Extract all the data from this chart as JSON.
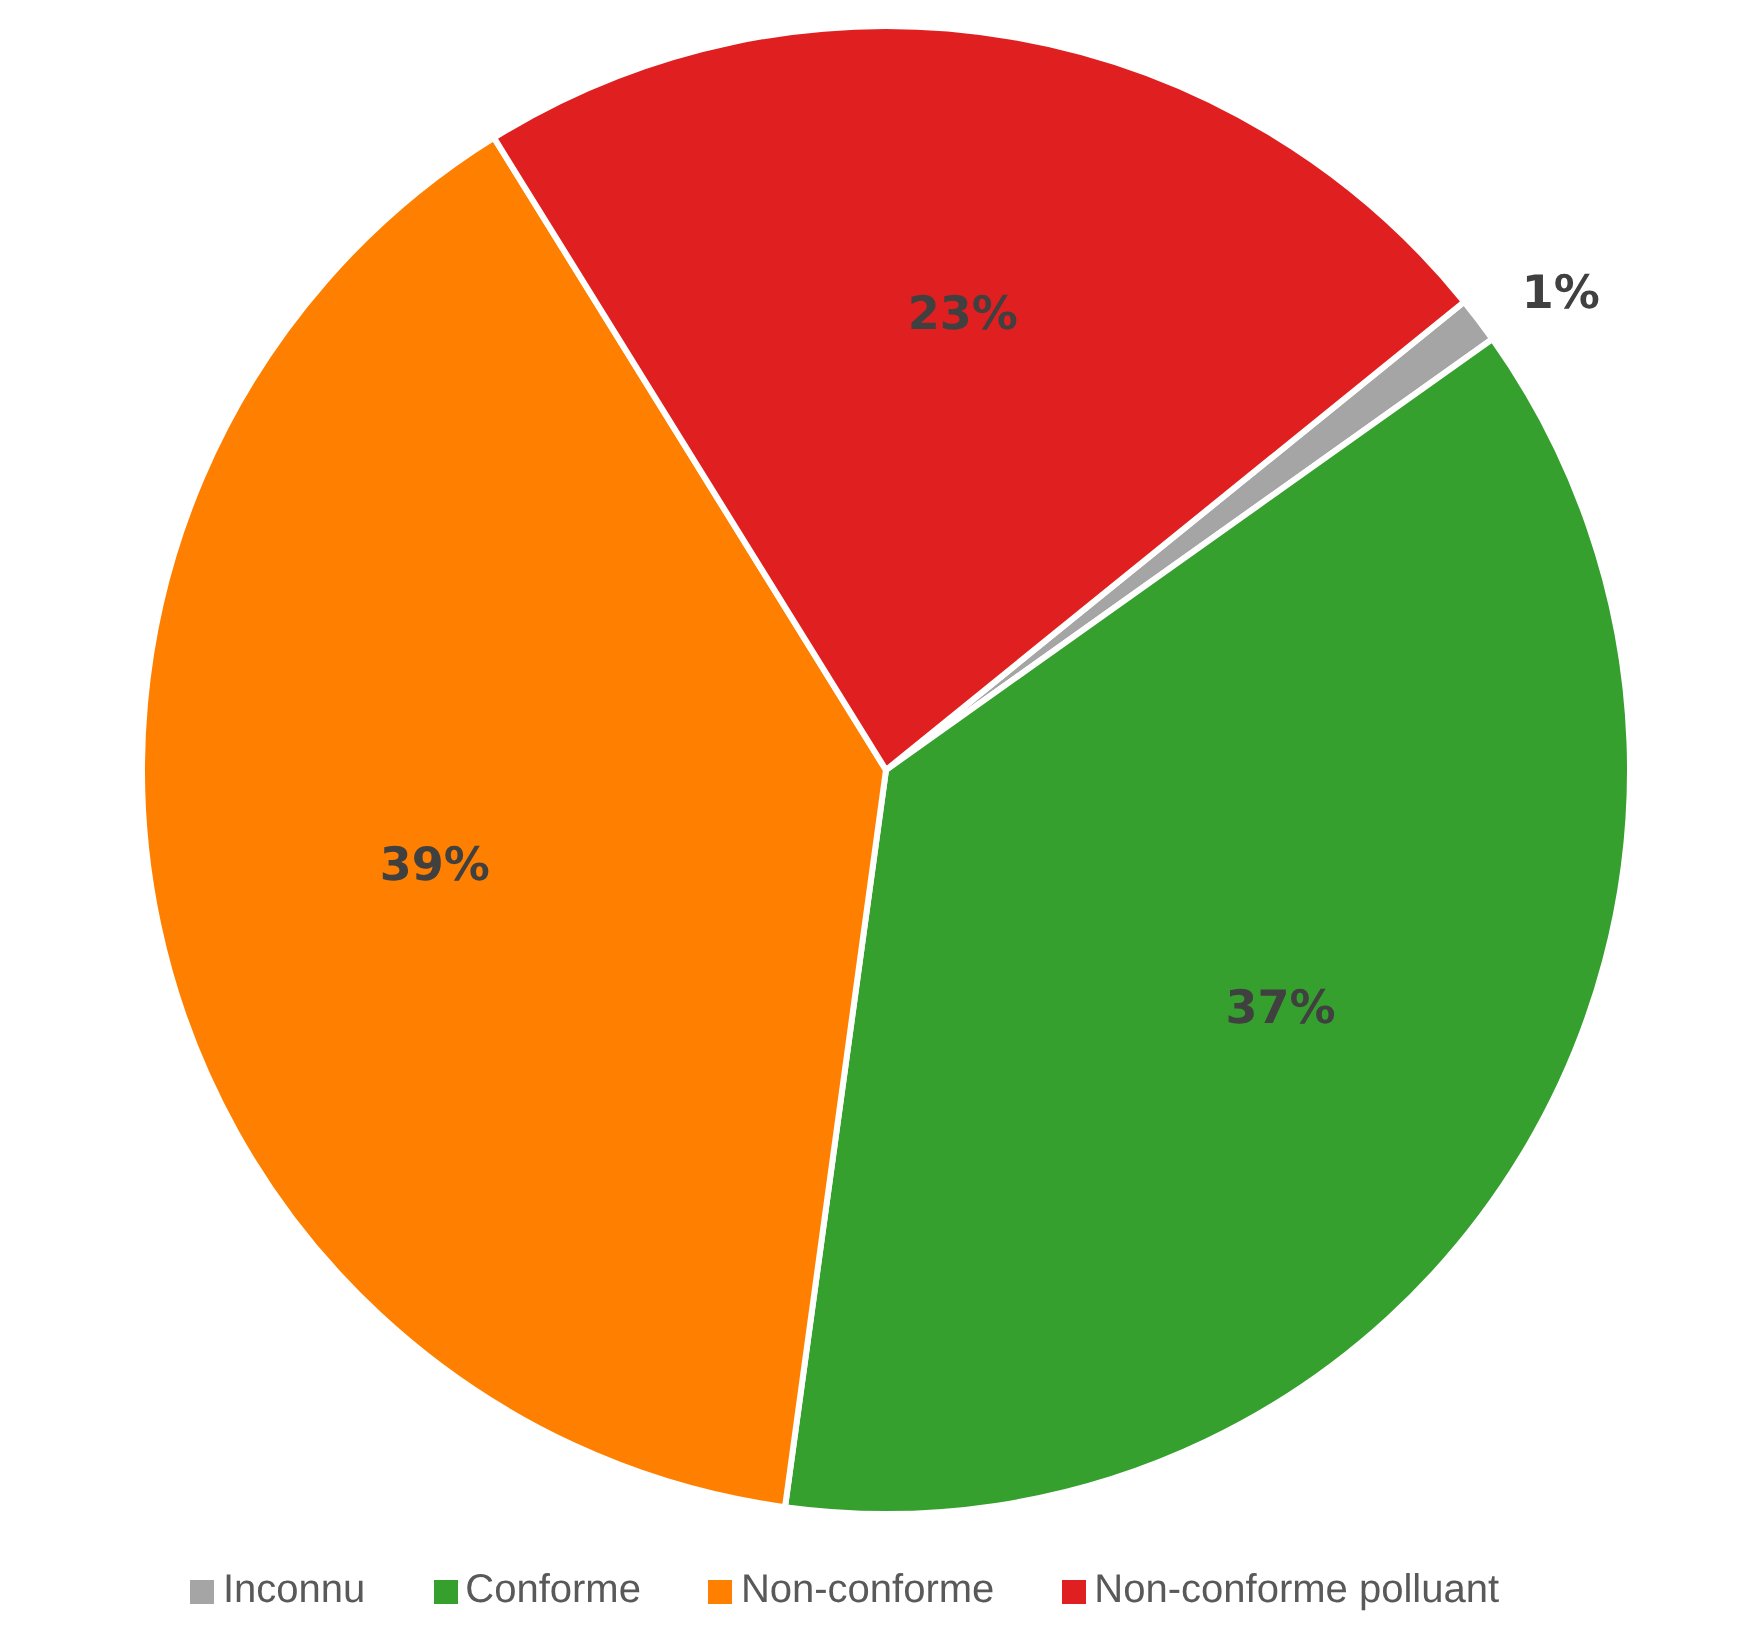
{
  "chart_data": {
    "type": "pie",
    "categories": [
      "Inconnu",
      "Conforme",
      "Non-conforme",
      "Non-conforme polluant"
    ],
    "values": [
      1,
      37,
      39,
      23
    ],
    "colors": [
      "#a5a5a5",
      "#36a02e",
      "#ff8000",
      "#e02020"
    ],
    "value_labels": [
      "1%",
      "37%",
      "39%",
      "23%"
    ],
    "legend": "bottom"
  }
}
